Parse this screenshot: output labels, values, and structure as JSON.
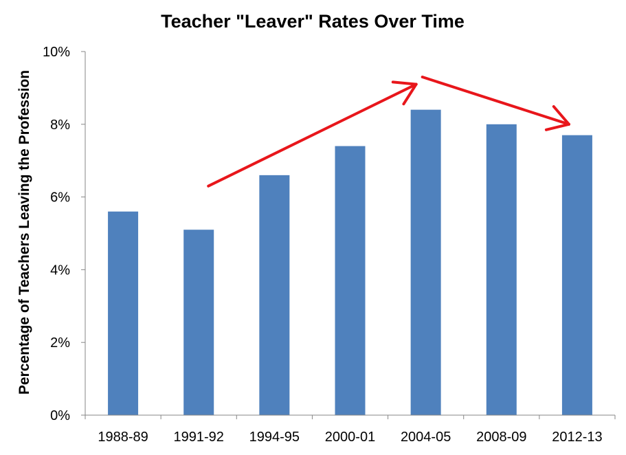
{
  "chart_data": {
    "type": "bar",
    "title": "Teacher \"Leaver\" Rates Over Time",
    "xlabel": "",
    "ylabel": "Percentage of Teachers Leaving the Profession",
    "categories": [
      "1988-89",
      "1991-92",
      "1994-95",
      "2000-01",
      "2004-05",
      "2008-09",
      "2012-13"
    ],
    "values": [
      5.6,
      5.1,
      6.6,
      7.4,
      8.4,
      8.0,
      7.7
    ],
    "ylim": [
      0,
      10
    ],
    "yticks": [
      0,
      2,
      4,
      6,
      8,
      10
    ],
    "ytick_labels": [
      "0%",
      "2%",
      "4%",
      "6%",
      "8%",
      "10%"
    ],
    "grid": false,
    "legend": "none",
    "bar_color": "#4f81bd",
    "annotations": [
      {
        "type": "arrow",
        "color": "#e8161b",
        "from_category": "1991-92",
        "to_category": "2004-05",
        "direction": "up"
      },
      {
        "type": "arrow",
        "color": "#e8161b",
        "from_category": "2004-05",
        "to_category": "2012-13",
        "direction": "down"
      }
    ]
  }
}
